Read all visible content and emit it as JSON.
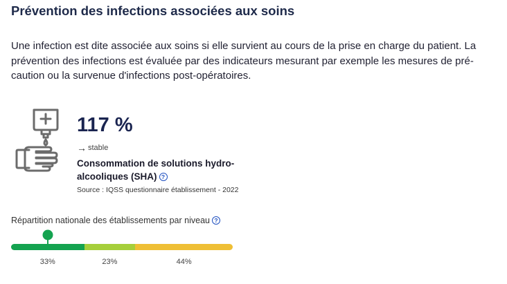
{
  "section": {
    "title": "Prévention des infections associées aux soins",
    "intro": "Une infection est dite associée aux soins si elle survient au cours de la prise en charge du patient. La prévention des infections est évaluée par des indicateurs mesurant par exemple les mesures de pré-caution ou la survenue d'infections post-opératoires."
  },
  "indicator": {
    "icon": "hand-sanitizer-icon",
    "value": "117 %",
    "trend_arrow": "→",
    "trend_label": "stable",
    "name": "Consommation de solutions hydro-alcooliques (SHA)",
    "help_glyph": "?",
    "source": "Source : IQSS questionnaire établissement - 2022"
  },
  "distribution": {
    "label": "Répartition nationale des établissements par niveau",
    "help_glyph": "?",
    "marker_segment": 0,
    "segments": [
      {
        "percent": 33,
        "label": "33%",
        "color": "#14a350"
      },
      {
        "percent": 23,
        "label": "23%",
        "color": "#a6cf3b"
      },
      {
        "percent": 44,
        "label": "44%",
        "color": "#efbf35"
      }
    ],
    "marker_color": "#14a350"
  }
}
